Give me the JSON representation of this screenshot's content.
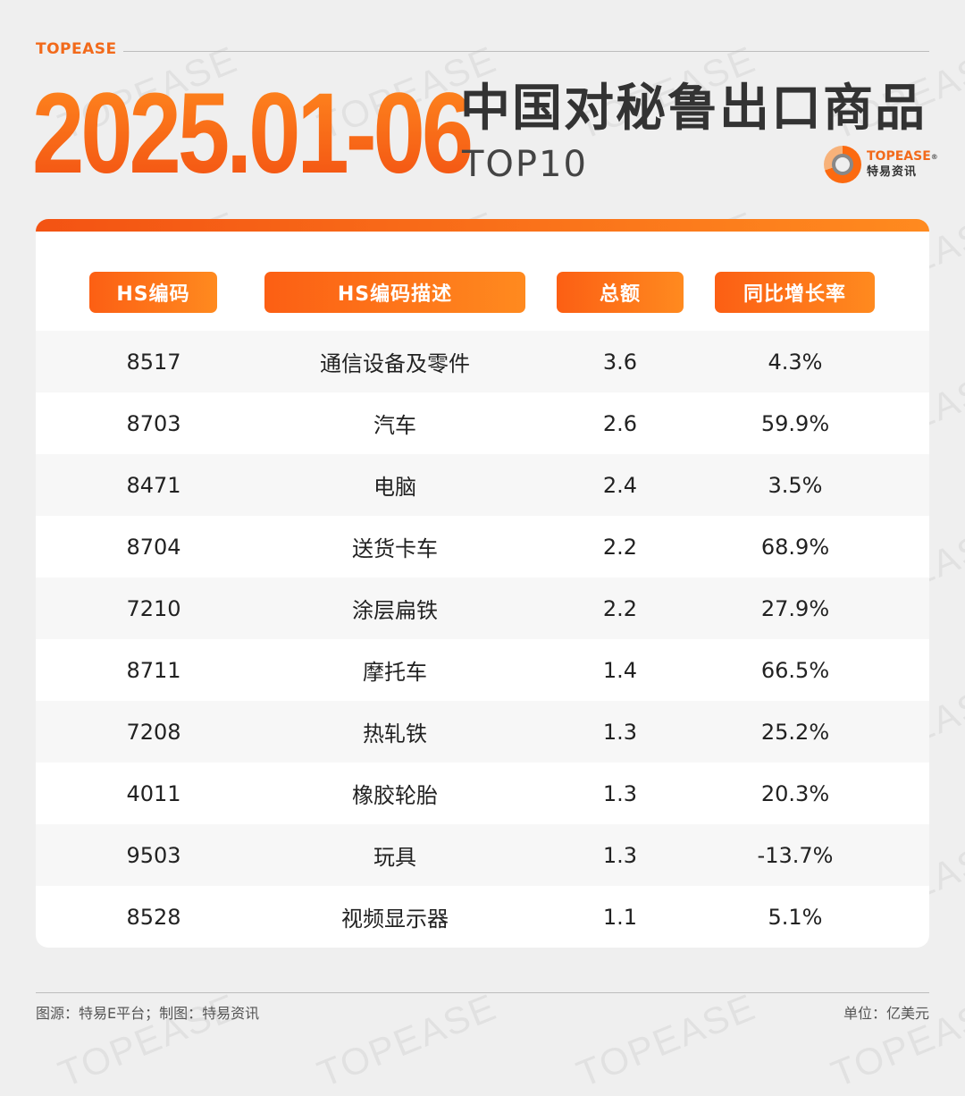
{
  "brand_tag": "TOPEASE",
  "title": {
    "date": "2025.01-06",
    "headline": "中国对秘鲁出口商品",
    "sub": "TOP10"
  },
  "logo": {
    "name": "TOPEASE",
    "reg": "®",
    "sub": "特易资讯"
  },
  "watermark": "TOPEASE",
  "footer": {
    "source": "图源：特易E平台；制图：特易资讯",
    "unit": "单位：亿美元"
  },
  "chart_data": {
    "type": "table",
    "columns": [
      "HS编码",
      "HS编码描述",
      "总额",
      "同比增长率"
    ],
    "rows": [
      [
        "8517",
        "通信设备及零件",
        "3.6",
        "4.3%"
      ],
      [
        "8703",
        "汽车",
        "2.6",
        "59.9%"
      ],
      [
        "8471",
        "电脑",
        "2.4",
        "3.5%"
      ],
      [
        "8704",
        "送货卡车",
        "2.2",
        "68.9%"
      ],
      [
        "7210",
        "涂层扁铁",
        "2.2",
        "27.9%"
      ],
      [
        "8711",
        "摩托车",
        "1.4",
        "66.5%"
      ],
      [
        "7208",
        "热轧铁",
        "1.3",
        "25.2%"
      ],
      [
        "4011",
        "橡胶轮胎",
        "1.3",
        "20.3%"
      ],
      [
        "9503",
        "玩具",
        "1.3",
        "-13.7%"
      ],
      [
        "8528",
        "视频显示器",
        "1.1",
        "5.1%"
      ]
    ]
  }
}
